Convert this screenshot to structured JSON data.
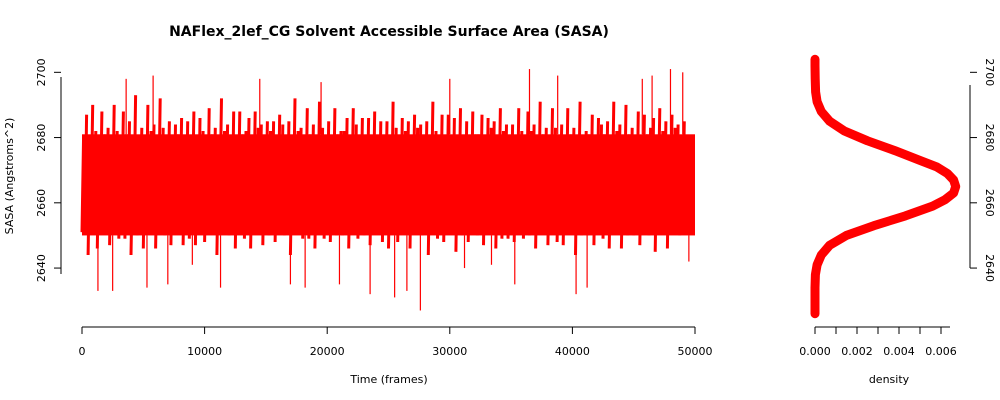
{
  "chart_data": [
    {
      "type": "line",
      "title": "NAFlex_2lef_CG Solvent Accessible Surface Area (SASA)",
      "xlabel": "Time (frames)",
      "ylabel": "SASA (Angstroms^2)",
      "x_ticks": [
        "0",
        "10000",
        "20000",
        "30000",
        "40000",
        "50000"
      ],
      "y_ticks": [
        "2640",
        "2660",
        "2680",
        "2700"
      ],
      "xlim": [
        0,
        50000
      ],
      "ylim": [
        2625,
        2705
      ],
      "color": "#ff0000",
      "series": [
        {
          "x_start": 0,
          "x_step": 250,
          "values": [
            2665,
            2670,
            2660,
            2675,
            2668,
            2662,
            2672,
            2666,
            2669,
            2661,
            2674,
            2667,
            2663,
            2671,
            2665,
            2670,
            2659,
            2676,
            2664,
            2668,
            2662,
            2673,
            2666,
            2669,
            2660,
            2675,
            2667,
            2664,
            2671,
            2663,
            2668,
            2666,
            2672,
            2661,
            2669,
            2665,
            2674,
            2662,
            2670,
            2667,
            2663,
            2672,
            2665,
            2668,
            2660,
            2675,
            2666,
            2669,
            2664,
            2671,
            2662,
            2673,
            2667,
            2665,
            2670,
            2661,
            2674,
            2666,
            2668,
            2663,
            2671,
            2665,
            2669,
            2662,
            2673,
            2667,
            2664,
            2670,
            2660,
            2675,
            2666,
            2668,
            2663,
            2672,
            2665,
            2669,
            2661,
            2674,
            2667,
            2664,
            2671,
            2662,
            2673,
            2666,
            2668,
            2665,
            2670,
            2660,
            2675,
            2667,
            2663,
            2671,
            2666,
            2669,
            2662,
            2673,
            2665,
            2668,
            2664,
            2670,
            2661,
            2674,
            2667,
            2663,
            2672,
            2665,
            2669,
            2662,
            2673,
            2666,
            2668,
            2664,
            2671,
            2660,
            2675,
            2667,
            2665,
            2670,
            2663,
            2672,
            2666,
            2669,
            2661,
            2674,
            2665,
            2668,
            2662,
            2673,
            2667,
            2664,
            2671,
            2663,
            2672,
            2666,
            2669,
            2660,
            2675,
            2665,
            2668,
            2664,
            2670,
            2662,
            2673,
            2667,
            2663,
            2671,
            2666,
            2669,
            2661,
            2674,
            2665,
            2668,
            2663,
            2672,
            2667,
            2664,
            2670,
            2662,
            2673,
            2666,
            2669,
            2660,
            2675,
            2665,
            2668,
            2664,
            2671,
            2663,
            2672,
            2667,
            2665,
            2670,
            2661,
            2674,
            2666,
            2669,
            2662,
            2673,
            2665,
            2668,
            2664,
            2671,
            2663,
            2672,
            2667,
            2666,
            2670,
            2660,
            2675,
            2665,
            2669,
            2662,
            2673,
            2666,
            2668,
            2664,
            2671
          ],
          "spikes": [
            {
              "x": 1300,
              "y": 2633
            },
            {
              "x": 2500,
              "y": 2633
            },
            {
              "x": 3600,
              "y": 2698
            },
            {
              "x": 5300,
              "y": 2634
            },
            {
              "x": 5800,
              "y": 2699
            },
            {
              "x": 7000,
              "y": 2635
            },
            {
              "x": 9000,
              "y": 2641
            },
            {
              "x": 11300,
              "y": 2634
            },
            {
              "x": 14500,
              "y": 2698
            },
            {
              "x": 17000,
              "y": 2635
            },
            {
              "x": 18200,
              "y": 2634
            },
            {
              "x": 19500,
              "y": 2697
            },
            {
              "x": 21000,
              "y": 2635
            },
            {
              "x": 23500,
              "y": 2632
            },
            {
              "x": 25500,
              "y": 2631
            },
            {
              "x": 26500,
              "y": 2633
            },
            {
              "x": 27600,
              "y": 2627
            },
            {
              "x": 30000,
              "y": 2698
            },
            {
              "x": 31200,
              "y": 2640
            },
            {
              "x": 33400,
              "y": 2641
            },
            {
              "x": 35300,
              "y": 2635
            },
            {
              "x": 36500,
              "y": 2701
            },
            {
              "x": 38800,
              "y": 2699
            },
            {
              "x": 40300,
              "y": 2632
            },
            {
              "x": 41200,
              "y": 2634
            },
            {
              "x": 45700,
              "y": 2698
            },
            {
              "x": 48000,
              "y": 2701
            },
            {
              "x": 49000,
              "y": 2700
            },
            {
              "x": 49500,
              "y": 2642
            },
            {
              "x": 46500,
              "y": 2699
            }
          ]
        }
      ]
    },
    {
      "type": "line",
      "title": "",
      "xlabel": "density",
      "ylabel": "",
      "x_ticks": [
        "0.000",
        "0.002",
        "0.004",
        "0.006"
      ],
      "y_ticks": [
        "2640",
        "2660",
        "2680",
        "2700"
      ],
      "xlim": [
        0,
        0.0068
      ],
      "ylim": [
        2625,
        2705
      ],
      "color": "#ff0000",
      "series": [
        {
          "y": [
            2626,
            2630,
            2634,
            2638,
            2641,
            2644,
            2647,
            2650,
            2653,
            2656,
            2659,
            2661,
            2663,
            2665,
            2667,
            2669,
            2671,
            2673,
            2676,
            2679,
            2682,
            2685,
            2688,
            2691,
            2694,
            2698,
            2702,
            2704
          ],
          "x": [
            0.0,
            0.0,
            0.0,
            2e-05,
            0.0001,
            0.0003,
            0.0007,
            0.0015,
            0.0028,
            0.0043,
            0.0056,
            0.0062,
            0.0066,
            0.0067,
            0.0066,
            0.0063,
            0.0058,
            0.005,
            0.0038,
            0.0025,
            0.0014,
            0.0007,
            0.0003,
            0.0001,
            3e-05,
            1e-05,
            0.0,
            0.0
          ]
        }
      ]
    }
  ]
}
